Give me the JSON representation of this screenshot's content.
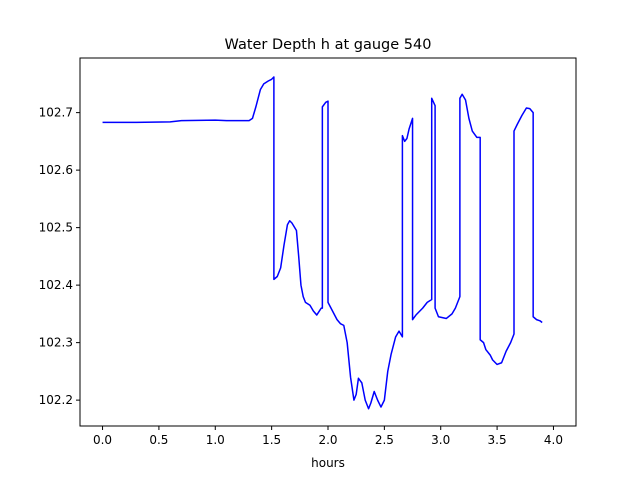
{
  "chart_data": {
    "type": "line",
    "title": "Water Depth h at gauge 540",
    "xlabel": "hours",
    "ylabel": "",
    "xlim": [
      -0.2,
      4.2
    ],
    "ylim": [
      102.155,
      102.795
    ],
    "x_ticks": [
      0.0,
      0.5,
      1.0,
      1.5,
      2.0,
      2.5,
      3.0,
      3.5,
      4.0
    ],
    "x_tick_labels": [
      "0.0",
      "0.5",
      "1.0",
      "1.5",
      "2.0",
      "2.5",
      "3.0",
      "3.5",
      "4.0"
    ],
    "y_ticks": [
      102.2,
      102.3,
      102.4,
      102.5,
      102.6,
      102.7
    ],
    "y_tick_labels": [
      "102.2",
      "102.3",
      "102.4",
      "102.5",
      "102.6",
      "102.7"
    ],
    "grid": false,
    "series": [
      {
        "color": "#0000ff",
        "points": [
          [
            0.0,
            102.683
          ],
          [
            0.3,
            102.683
          ],
          [
            0.6,
            102.684
          ],
          [
            0.7,
            102.686
          ],
          [
            1.0,
            102.687
          ],
          [
            1.1,
            102.686
          ],
          [
            1.3,
            102.686
          ],
          [
            1.33,
            102.69
          ],
          [
            1.36,
            102.71
          ],
          [
            1.4,
            102.74
          ],
          [
            1.43,
            102.75
          ],
          [
            1.47,
            102.755
          ],
          [
            1.5,
            102.758
          ],
          [
            1.52,
            102.762
          ],
          [
            1.52,
            102.41
          ],
          [
            1.55,
            102.415
          ],
          [
            1.58,
            102.43
          ],
          [
            1.61,
            102.47
          ],
          [
            1.64,
            102.505
          ],
          [
            1.66,
            102.512
          ],
          [
            1.68,
            102.508
          ],
          [
            1.72,
            102.495
          ],
          [
            1.74,
            102.45
          ],
          [
            1.76,
            102.4
          ],
          [
            1.78,
            102.38
          ],
          [
            1.8,
            102.37
          ],
          [
            1.84,
            102.365
          ],
          [
            1.87,
            102.355
          ],
          [
            1.9,
            102.348
          ],
          [
            1.94,
            102.36
          ],
          [
            1.95,
            102.36
          ],
          [
            1.95,
            102.71
          ],
          [
            1.98,
            102.718
          ],
          [
            2.0,
            102.72
          ],
          [
            2.0,
            102.37
          ],
          [
            2.04,
            102.355
          ],
          [
            2.08,
            102.34
          ],
          [
            2.11,
            102.333
          ],
          [
            2.14,
            102.33
          ],
          [
            2.17,
            102.3
          ],
          [
            2.2,
            102.24
          ],
          [
            2.23,
            102.2
          ],
          [
            2.25,
            102.21
          ],
          [
            2.27,
            102.238
          ],
          [
            2.3,
            102.23
          ],
          [
            2.33,
            102.2
          ],
          [
            2.36,
            102.185
          ],
          [
            2.38,
            102.195
          ],
          [
            2.41,
            102.215
          ],
          [
            2.44,
            102.2
          ],
          [
            2.47,
            102.188
          ],
          [
            2.5,
            102.2
          ],
          [
            2.53,
            102.25
          ],
          [
            2.56,
            102.28
          ],
          [
            2.6,
            102.31
          ],
          [
            2.63,
            102.32
          ],
          [
            2.66,
            102.31
          ],
          [
            2.66,
            102.66
          ],
          [
            2.68,
            102.65
          ],
          [
            2.7,
            102.655
          ],
          [
            2.72,
            102.672
          ],
          [
            2.75,
            102.69
          ],
          [
            2.75,
            102.34
          ],
          [
            2.78,
            102.348
          ],
          [
            2.84,
            102.36
          ],
          [
            2.88,
            102.37
          ],
          [
            2.92,
            102.375
          ],
          [
            2.92,
            102.725
          ],
          [
            2.95,
            102.712
          ],
          [
            2.95,
            102.36
          ],
          [
            2.98,
            102.345
          ],
          [
            3.05,
            102.342
          ],
          [
            3.1,
            102.35
          ],
          [
            3.13,
            102.36
          ],
          [
            3.17,
            102.38
          ],
          [
            3.17,
            102.725
          ],
          [
            3.19,
            102.732
          ],
          [
            3.22,
            102.722
          ],
          [
            3.25,
            102.69
          ],
          [
            3.28,
            102.668
          ],
          [
            3.32,
            102.657
          ],
          [
            3.35,
            102.657
          ],
          [
            3.35,
            102.305
          ],
          [
            3.38,
            102.3
          ],
          [
            3.4,
            102.288
          ],
          [
            3.44,
            102.278
          ],
          [
            3.46,
            102.27
          ],
          [
            3.5,
            102.262
          ],
          [
            3.54,
            102.265
          ],
          [
            3.58,
            102.285
          ],
          [
            3.62,
            102.3
          ],
          [
            3.65,
            102.315
          ],
          [
            3.65,
            102.668
          ],
          [
            3.68,
            102.68
          ],
          [
            3.72,
            102.695
          ],
          [
            3.76,
            102.708
          ],
          [
            3.79,
            102.707
          ],
          [
            3.82,
            102.7
          ],
          [
            3.82,
            102.345
          ],
          [
            3.85,
            102.34
          ],
          [
            3.88,
            102.338
          ],
          [
            3.9,
            102.335
          ]
        ]
      }
    ]
  }
}
